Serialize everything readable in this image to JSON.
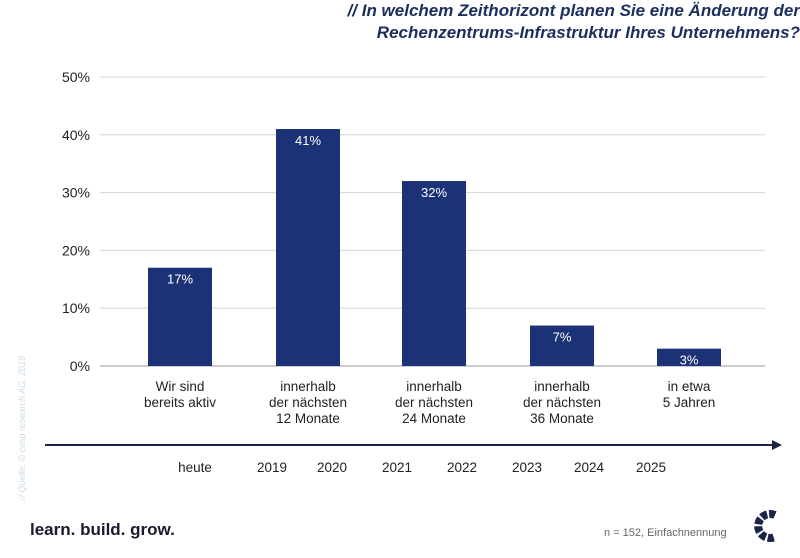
{
  "title_lines": [
    "// In welchem Zeithorizont planen Sie eine Änderung der",
    "Rechenzentrums-Infrastruktur Ihres Unternehmens?"
  ],
  "chart_data": {
    "type": "bar",
    "title": "// In welchem Zeithorizont planen Sie eine Änderung der Rechenzentrums-Infrastruktur Ihres Unternehmens?",
    "categories": [
      "Wir sind\nbereits aktiv",
      "innerhalb\nder nächsten\n12 Monate",
      "innerhalb\nder nächsten\n24 Monate",
      "innerhalb\nder nächsten\n36 Monate",
      "in etwa\n5 Jahren"
    ],
    "values": [
      17,
      41,
      32,
      7,
      3
    ],
    "data_labels": [
      "17%",
      "41%",
      "32%",
      "7%",
      "3%"
    ],
    "ylim": [
      0,
      50
    ],
    "yticks": [
      "0%",
      "10%",
      "20%",
      "30%",
      "40%",
      "50%"
    ],
    "grid": true,
    "bar_color": "#1c3277",
    "timeline_labels": [
      "heute",
      "2019",
      "2020",
      "2021",
      "2022",
      "2023",
      "2024",
      "2025"
    ]
  },
  "source": "// Quelle: © crisp research AG, 2019",
  "tagline": "learn. build. grow.",
  "note": "n = 152, Einfachnennung",
  "logo": "crisp-c-logo"
}
